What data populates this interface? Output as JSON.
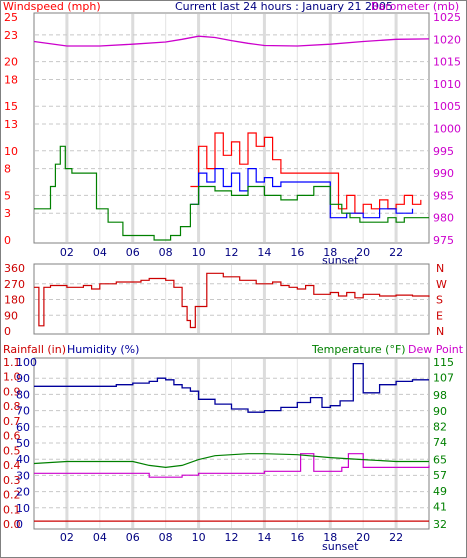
{
  "header": {
    "left_label": "Windspeed (mph)",
    "center_title": "Current last 24 hours : January 21 2005",
    "right_label": "Barometer (mb)"
  },
  "colors": {
    "frame": "#808080",
    "wind_gust": "#ff0000",
    "wind_avg": "#0000ff",
    "wind_low": "#008000",
    "barometer": "#cc00cc",
    "direction": "#cc0000",
    "humidity": "#00009c",
    "temperature": "#008000",
    "dew_point": "#cc00cc",
    "rainfall": "#cc0000",
    "grid": "#c8c8c8"
  },
  "x_axis": {
    "hour_ticks": [
      "02",
      "04",
      "06",
      "08",
      "10",
      "12",
      "14",
      "16",
      "18",
      "20",
      "22"
    ],
    "sunset_label": "sunset"
  },
  "chart_data": [
    {
      "type": "line",
      "id": "wind_barometer",
      "title": "Current last 24 hours : January 21 2005",
      "ylabel_left": "Windspeed (mph)",
      "ylabel_right": "Barometer (mb)",
      "x_range_hours": [
        0,
        24
      ],
      "y_left_ticks": [
        "0",
        "3",
        "5",
        "8",
        "10",
        "13",
        "15",
        "18",
        "20",
        "23",
        "25"
      ],
      "y_left_range": [
        0,
        25
      ],
      "y_right_ticks": [
        "975",
        "980",
        "985",
        "990",
        "995",
        "1000",
        "1005",
        "1010",
        "1015",
        "1020",
        "1025"
      ],
      "y_right_range": [
        975,
        1025
      ],
      "barometer": {
        "x": [
          0,
          2,
          4,
          6,
          8,
          9,
          10,
          11,
          12,
          13,
          14,
          16,
          18,
          20,
          22,
          24
        ],
        "y": [
          1019.5,
          1018.5,
          1018.5,
          1018.9,
          1019.4,
          1020.0,
          1020.7,
          1020.4,
          1019.7,
          1019.1,
          1018.6,
          1018.5,
          1018.9,
          1019.5,
          1020.0,
          1020.1
        ]
      },
      "wind_low": {
        "x": [
          0,
          1.0,
          1.3,
          1.6,
          1.9,
          2.3,
          3.0,
          3.8,
          4.5,
          5.4,
          7.3,
          8.3,
          8.9,
          9.2,
          9.5,
          10.0,
          11.0,
          12.0,
          13.0,
          14.0,
          15.0,
          16.0,
          17.0,
          18.0,
          18.7,
          19.2,
          19.8,
          20.5,
          21.5,
          22.0,
          22.5,
          24.0
        ],
        "y": [
          3.5,
          6.0,
          8.5,
          10.5,
          8.0,
          7.5,
          7.5,
          3.5,
          2.0,
          0.5,
          0.0,
          0.5,
          1.5,
          1.5,
          4.0,
          6.0,
          5.5,
          5.0,
          6.0,
          5.0,
          4.5,
          5.0,
          6.0,
          4.0,
          3.0,
          2.5,
          2.0,
          2.0,
          2.5,
          2.0,
          2.5,
          2.5
        ]
      },
      "wind_avg": {
        "x": [
          9.5,
          10.0,
          10.5,
          11.0,
          11.5,
          12.0,
          12.5,
          13.0,
          13.5,
          14.0,
          14.5,
          15.0,
          18.0,
          19.0,
          20.0,
          21.0,
          22.0,
          23.0
        ],
        "y": [
          4.0,
          7.5,
          6.5,
          8.0,
          6.0,
          7.5,
          5.5,
          8.0,
          6.5,
          7.0,
          6.0,
          6.5,
          2.5,
          3.0,
          2.5,
          3.5,
          3.0,
          3.5
        ]
      },
      "wind_gust": {
        "x": [
          9.5,
          10.0,
          10.5,
          11.0,
          11.5,
          12.0,
          12.5,
          13.0,
          13.5,
          14.0,
          14.5,
          15.0,
          18.5,
          19.0,
          19.5,
          20.0,
          20.5,
          21.0,
          21.5,
          22.0,
          22.5,
          23.0,
          23.5
        ],
        "y": [
          6.0,
          10.5,
          8.0,
          12.0,
          9.5,
          11.0,
          8.5,
          12.0,
          10.5,
          11.5,
          9.0,
          7.5,
          3.5,
          5.0,
          3.0,
          4.0,
          3.5,
          4.5,
          3.5,
          4.0,
          5.0,
          4.0,
          4.5
        ]
      }
    },
    {
      "type": "line",
      "id": "wind_direction",
      "y_left_ticks": [
        "0",
        "90",
        "180",
        "270",
        "360"
      ],
      "y_left_range": [
        0,
        360
      ],
      "y_right_ticks": [
        "N",
        "W",
        "S",
        "E",
        "N"
      ],
      "direction": {
        "x": [
          0,
          0.3,
          0.6,
          1.0,
          2.0,
          3.0,
          3.5,
          4.0,
          5.0,
          6.0,
          6.5,
          7.0,
          8.0,
          8.5,
          9.0,
          9.3,
          9.5,
          9.8,
          10.5,
          11.5,
          12.5,
          13.5,
          14.5,
          15.0,
          15.5,
          16.0,
          16.5,
          17.0,
          18.0,
          18.5,
          19.0,
          19.5,
          20.0,
          21.0,
          22.0,
          23.0,
          24.0
        ],
        "y": [
          250,
          30,
          250,
          260,
          250,
          260,
          240,
          270,
          280,
          280,
          290,
          300,
          290,
          250,
          140,
          60,
          20,
          140,
          330,
          310,
          290,
          270,
          280,
          260,
          250,
          240,
          260,
          210,
          220,
          200,
          220,
          190,
          210,
          200,
          205,
          200,
          195
        ]
      }
    },
    {
      "type": "line",
      "id": "humidity_temp",
      "ylabel_left": "Rainfall (in)",
      "ylabel_left2": "Humidity (%)",
      "ylabel_right": "Temperature (°F)",
      "ylabel_right2": "Dew Point",
      "y_rain_ticks": [
        "0.0",
        "0.1",
        "0.2",
        "0.3",
        "0.4",
        "0.5",
        "0.6",
        "0.7",
        "0.8",
        "0.9",
        "1.0",
        "1.1"
      ],
      "y_humidity_ticks": [
        "0",
        "10",
        "20",
        "30",
        "40",
        "50",
        "60",
        "70",
        "80",
        "90",
        "100"
      ],
      "y_humidity_range": [
        0,
        100
      ],
      "y_temp_ticks": [
        "32",
        "41",
        "49",
        "57",
        "65",
        "74",
        "82",
        "90",
        "98",
        "107",
        "115"
      ],
      "y_temp_range": [
        32,
        115
      ],
      "humidity": {
        "x": [
          0,
          2,
          4,
          5,
          6,
          7,
          7.5,
          8,
          8.5,
          9,
          9.5,
          10,
          11,
          12,
          13,
          14,
          15,
          16,
          16.8,
          17.5,
          18,
          18.6,
          19.4,
          20,
          21,
          22,
          23,
          24
        ],
        "y": [
          85,
          85,
          85,
          86,
          87,
          88,
          90,
          89,
          86,
          84,
          82,
          77,
          74,
          71,
          69,
          70,
          72,
          75,
          78,
          72,
          73,
          76,
          99,
          81,
          86,
          88,
          89,
          89
        ]
      },
      "temperature": {
        "x": [
          0,
          2,
          4,
          6,
          7,
          8,
          9,
          10,
          11,
          12,
          13,
          14,
          16,
          18,
          20,
          22,
          24
        ],
        "y": [
          63,
          64,
          64,
          64,
          62,
          61,
          62,
          65,
          67,
          67.5,
          68,
          68,
          67.5,
          66,
          65,
          64,
          64
        ]
      },
      "dew_point": {
        "x": [
          0,
          2,
          4,
          6,
          7,
          8,
          9,
          10,
          12,
          14,
          15.8,
          16.2,
          17,
          18,
          18.7,
          19.1,
          20,
          22,
          24
        ],
        "y": [
          58,
          58,
          58,
          58,
          56,
          56,
          57,
          58,
          58,
          59,
          59,
          68,
          59,
          59,
          61,
          68,
          61,
          61,
          62
        ]
      },
      "rainfall": {
        "x": [
          0,
          24
        ],
        "y": [
          0.02,
          0.02
        ]
      }
    }
  ]
}
